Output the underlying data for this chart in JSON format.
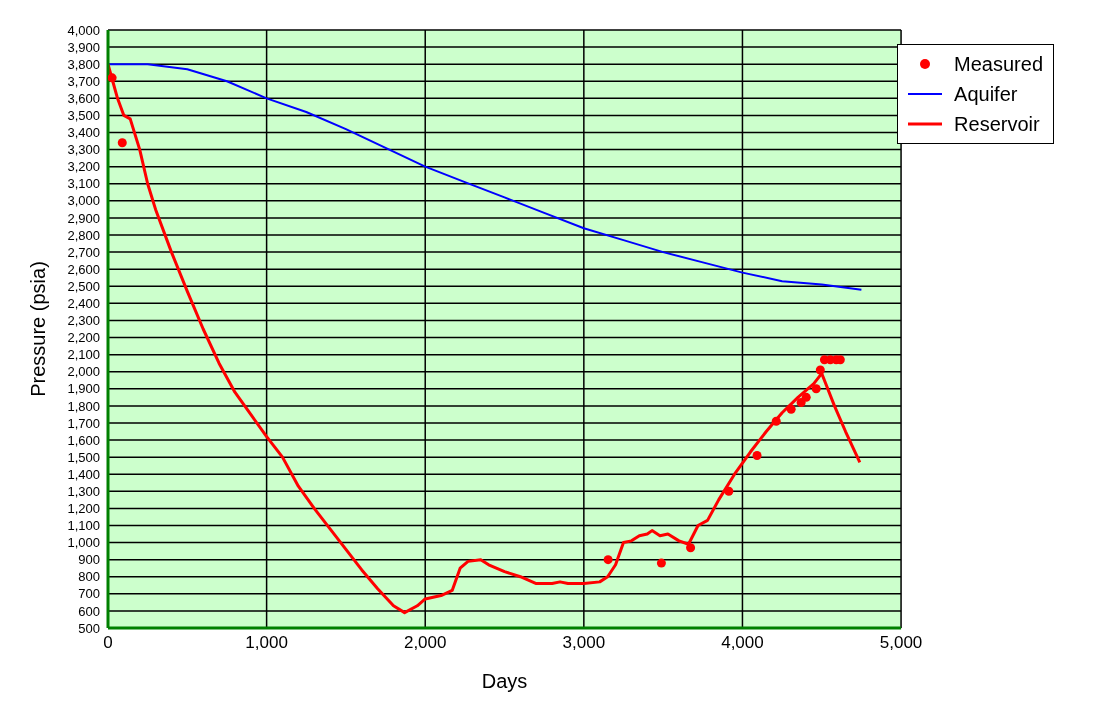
{
  "chart_data": {
    "type": "line",
    "xlabel": "Days",
    "ylabel": "Pressure (psia)",
    "xlim": [
      0,
      5000
    ],
    "xticks": [
      0,
      {
        "value": 1000,
        "label": "1,000"
      },
      {
        "value": 2000,
        "label": "2,000"
      },
      {
        "value": 3000,
        "label": "3,000"
      },
      {
        "value": 4000,
        "label": "4,000"
      },
      {
        "value": 5000,
        "label": "5,000"
      }
    ],
    "ylim": [
      500,
      4000
    ],
    "yticks": [
      500,
      600,
      700,
      800,
      900,
      {
        "value": 1000,
        "label": "1,000"
      },
      {
        "value": 1100,
        "label": "1,100"
      },
      {
        "value": 1200,
        "label": "1,200"
      },
      {
        "value": 1300,
        "label": "1,300"
      },
      {
        "value": 1400,
        "label": "1,400"
      },
      {
        "value": 1500,
        "label": "1,500"
      },
      {
        "value": 1600,
        "label": "1,600"
      },
      {
        "value": 1700,
        "label": "1,700"
      },
      {
        "value": 1800,
        "label": "1,800"
      },
      {
        "value": 1900,
        "label": "1,900"
      },
      {
        "value": 2000,
        "label": "2,000"
      },
      {
        "value": 2100,
        "label": "2,100"
      },
      {
        "value": 2200,
        "label": "2,200"
      },
      {
        "value": 2300,
        "label": "2,300"
      },
      {
        "value": 2400,
        "label": "2,400"
      },
      {
        "value": 2500,
        "label": "2,500"
      },
      {
        "value": 2600,
        "label": "2,600"
      },
      {
        "value": 2700,
        "label": "2,700"
      },
      {
        "value": 2800,
        "label": "2,800"
      },
      {
        "value": 2900,
        "label": "2,900"
      },
      {
        "value": 3000,
        "label": "3,000"
      },
      {
        "value": 3100,
        "label": "3,100"
      },
      {
        "value": 3200,
        "label": "3,200"
      },
      {
        "value": 3300,
        "label": "3,300"
      },
      {
        "value": 3400,
        "label": "3,400"
      },
      {
        "value": 3500,
        "label": "3,500"
      },
      {
        "value": 3600,
        "label": "3,600"
      },
      {
        "value": 3700,
        "label": "3,700"
      },
      {
        "value": 3800,
        "label": "3,800"
      },
      {
        "value": 3900,
        "label": "3,900"
      },
      {
        "value": 4000,
        "label": "4,000"
      }
    ],
    "grid": true,
    "legend": "top right",
    "line_style": "solid",
    "series": [
      {
        "name": "Measured",
        "type": "scatter",
        "marker": "circle",
        "color": "#ff0000",
        "x": [
          26,
          90,
          3153,
          3489,
          3673,
          3914,
          4092,
          4213,
          4307,
          4370,
          4402,
          4465,
          4491,
          4517,
          4554,
          4591,
          4617
        ],
        "values": [
          3720,
          3340,
          900,
          880,
          970,
          1300,
          1510,
          1710,
          1780,
          1820,
          1850,
          1900,
          2010,
          2070,
          2070,
          2070,
          2070
        ]
      },
      {
        "name": "Aquifer",
        "marker": "none",
        "color": "#0000ff",
        "x": [
          0,
          250,
          500,
          750,
          1000,
          1250,
          1500,
          1750,
          2000,
          2250,
          2500,
          2750,
          3000,
          3250,
          3500,
          3750,
          4000,
          4250,
          4500,
          4750
        ],
        "values": [
          3800,
          3800,
          3770,
          3700,
          3600,
          3520,
          3420,
          3310,
          3200,
          3110,
          3020,
          2930,
          2840,
          2770,
          2700,
          2640,
          2580,
          2530,
          2510,
          2480
        ]
      },
      {
        "name": "Reservoir",
        "marker": "none",
        "color": "#ff0000",
        "x": [
          0,
          30,
          60,
          100,
          140,
          200,
          250,
          300,
          400,
          500,
          600,
          700,
          800,
          900,
          1000,
          1100,
          1200,
          1300,
          1400,
          1500,
          1600,
          1700,
          1800,
          1870,
          1950,
          2000,
          2100,
          2170,
          2220,
          2270,
          2350,
          2400,
          2500,
          2600,
          2700,
          2800,
          2850,
          2900,
          3000,
          3100,
          3150,
          3200,
          3250,
          3300,
          3350,
          3400,
          3430,
          3480,
          3530,
          3600,
          3660,
          3720,
          3780,
          3850,
          3950,
          4050,
          4150,
          4250,
          4350,
          4450,
          4500,
          4580,
          4650,
          4740
        ],
        "values": [
          3800,
          3700,
          3600,
          3500,
          3480,
          3300,
          3100,
          2950,
          2700,
          2470,
          2250,
          2050,
          1880,
          1750,
          1620,
          1500,
          1330,
          1200,
          1080,
          960,
          840,
          730,
          630,
          590,
          630,
          670,
          690,
          720,
          850,
          890,
          900,
          870,
          830,
          800,
          760,
          760,
          770,
          760,
          760,
          770,
          800,
          870,
          1000,
          1010,
          1040,
          1050,
          1070,
          1040,
          1050,
          1010,
          990,
          1100,
          1130,
          1250,
          1400,
          1530,
          1650,
          1760,
          1850,
          1930,
          1990,
          1800,
          1650,
          1470
        ]
      }
    ]
  }
}
